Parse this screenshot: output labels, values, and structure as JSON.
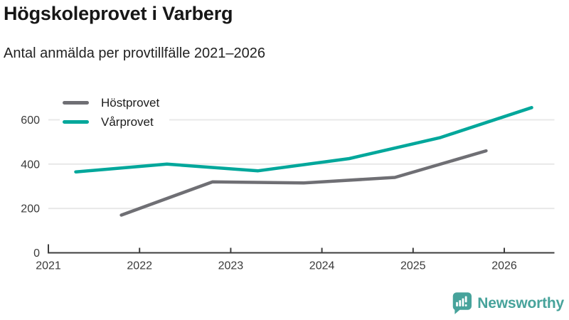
{
  "header": {
    "title": "Högskoleprovet i Varberg",
    "subtitle": "Antal anmälda per provtillfälle 2021–2026"
  },
  "legend": [
    {
      "label": "Höstprovet",
      "color": "#6f6f74"
    },
    {
      "label": "Vårprovet",
      "color": "#00a79b"
    }
  ],
  "chart_data": {
    "type": "line",
    "title": "Högskoleprovet i Varberg",
    "subtitle": "Antal anmälda per provtillfälle 2021–2026",
    "xlabel": "",
    "ylabel": "",
    "x_ticks": [
      2021,
      2022,
      2023,
      2024,
      2025,
      2026
    ],
    "y_ticks": [
      0,
      200,
      400,
      600
    ],
    "xlim": [
      2021,
      2026.55
    ],
    "ylim": [
      0,
      672
    ],
    "grid": true,
    "legend_position": "top-left",
    "series": [
      {
        "name": "Höstprovet",
        "color": "#6f6f74",
        "x": [
          2021.8,
          2022.8,
          2023.8,
          2024.8,
          2025.8
        ],
        "values": [
          170,
          320,
          315,
          340,
          460
        ]
      },
      {
        "name": "Vårprovet",
        "color": "#00a79b",
        "x": [
          2021.3,
          2022.3,
          2023.3,
          2024.3,
          2025.3,
          2026.3
        ],
        "values": [
          365,
          400,
          370,
          425,
          520,
          655
        ]
      }
    ]
  },
  "colors": {
    "grid": "#e8e8e8",
    "axis": "#3d3d3d",
    "tick_text": "#3a3a3a"
  },
  "footer": {
    "brand": "Newsworthy",
    "brand_color": "#47a39b"
  }
}
